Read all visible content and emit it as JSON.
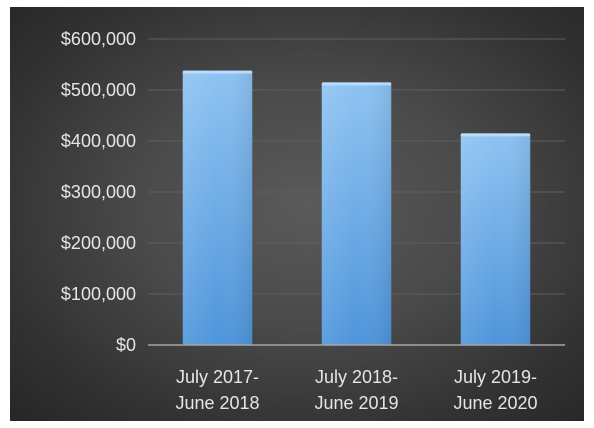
{
  "chart_data": {
    "type": "bar",
    "title": "",
    "xlabel": "",
    "ylabel": "",
    "categories": [
      [
        "July 2017-",
        "June 2018"
      ],
      [
        "July 2018-",
        "June 2019"
      ],
      [
        "July 2019-",
        "June 2020"
      ]
    ],
    "values": [
      538000,
      515000,
      415000
    ],
    "ylim": [
      0,
      600000
    ],
    "yticks": [
      0,
      100000,
      200000,
      300000,
      400000,
      500000,
      600000
    ],
    "ytick_labels": [
      "$0",
      "$100,000",
      "$200,000",
      "$300,000",
      "$400,000",
      "$500,000",
      "$600,000"
    ],
    "grid": true,
    "legend": "none",
    "colors": {
      "bar_top": "#8ec3f2",
      "bar_bottom": "#4e95db",
      "grid": "#5e5e5e",
      "axis": "#a6a6a6",
      "text": "#e6e6e6"
    }
  }
}
